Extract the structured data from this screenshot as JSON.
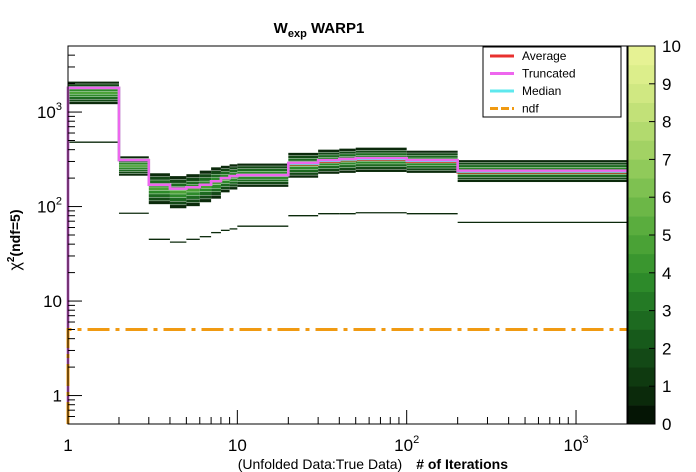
{
  "chart_data": {
    "type": "line",
    "title_main": "W",
    "title_sub": "exp",
    "title_rest": " WARP1",
    "xlabel_pre": "(Unfolded Data:True Data)",
    "xlabel_main": "# of Iterations",
    "ylabel_chi": "χ",
    "ylabel_sup": "2",
    "ylabel_rest": "(ndf=5)",
    "xscale": "log",
    "yscale": "log",
    "xlim": [
      1,
      2000
    ],
    "ylim": [
      0.5,
      5000
    ],
    "x_ticks": [
      {
        "value": 1,
        "label": "1",
        "sup": ""
      },
      {
        "value": 10,
        "label": "10",
        "sup": ""
      },
      {
        "value": 100,
        "label": "10",
        "sup": "2"
      },
      {
        "value": 1000,
        "label": "10",
        "sup": "3"
      }
    ],
    "y_ticks": [
      {
        "value": 1,
        "label": "1",
        "sup": ""
      },
      {
        "value": 10,
        "label": "10",
        "sup": ""
      },
      {
        "value": 100,
        "label": "10",
        "sup": "2"
      },
      {
        "value": 1000,
        "label": "10",
        "sup": "3"
      }
    ],
    "iterations": [
      1,
      2,
      3,
      4,
      5,
      6,
      7,
      8,
      9,
      10,
      20,
      30,
      40,
      50,
      100,
      200,
      2000
    ],
    "series": [
      {
        "name": "Average",
        "color": "#e8312f",
        "style": "solid",
        "values": [
          1800,
          310,
          170,
          155,
          160,
          170,
          185,
          200,
          210,
          215,
          280,
          300,
          310,
          315,
          300,
          230
        ]
      },
      {
        "name": "Truncated",
        "color": "#ee66ee",
        "style": "solid",
        "values": [
          1800,
          310,
          170,
          155,
          160,
          170,
          185,
          200,
          210,
          215,
          290,
          310,
          320,
          325,
          310,
          240
        ]
      },
      {
        "name": "Median",
        "color": "#5ee8ee",
        "style": "solid",
        "values": [
          1800,
          310,
          170,
          155,
          160,
          170,
          185,
          200,
          210,
          215,
          285,
          305,
          315,
          320,
          305,
          235
        ]
      },
      {
        "name": "ndf",
        "color": "#f09a12",
        "style": "dashdot",
        "values": [
          5,
          5,
          5,
          5,
          5,
          5,
          5,
          5,
          5,
          5,
          5,
          5,
          5,
          5,
          5,
          5
        ]
      }
    ],
    "band": {
      "lower": [
        1200,
        210,
        105,
        95,
        100,
        110,
        120,
        140,
        150,
        160,
        200,
        220,
        225,
        230,
        225,
        180
      ],
      "upper": [
        2100,
        340,
        225,
        210,
        220,
        240,
        260,
        270,
        280,
        285,
        370,
        400,
        410,
        420,
        390,
        310
      ]
    },
    "outliers": [
      {
        "x0": 1,
        "x1": 2,
        "y": 480
      },
      {
        "x0": 2,
        "x1": 3,
        "y": 85
      },
      {
        "x0": 3,
        "x1": 4,
        "y": 45
      },
      {
        "x0": 4,
        "x1": 5,
        "y": 42
      },
      {
        "x0": 5,
        "x1": 6,
        "y": 45
      },
      {
        "x0": 6,
        "x1": 7,
        "y": 48
      },
      {
        "x0": 7,
        "x1": 8,
        "y": 53
      },
      {
        "x0": 8,
        "x1": 9,
        "y": 56
      },
      {
        "x0": 9,
        "x1": 10,
        "y": 58
      },
      {
        "x0": 10,
        "x1": 20,
        "y": 62
      },
      {
        "x0": 20,
        "x1": 30,
        "y": 80
      },
      {
        "x0": 30,
        "x1": 40,
        "y": 84
      },
      {
        "x0": 40,
        "x1": 50,
        "y": 84
      },
      {
        "x0": 50,
        "x1": 100,
        "y": 86
      },
      {
        "x0": 100,
        "x1": 200,
        "y": 84
      },
      {
        "x0": 200,
        "x1": 2000,
        "y": 68
      }
    ],
    "colorbar": {
      "min": 0,
      "max": 10,
      "labels": [
        "0",
        "1",
        "2",
        "3",
        "4",
        "5",
        "6",
        "7",
        "8",
        "9",
        "10"
      ],
      "colors": [
        "#051505",
        "#0b2a0b",
        "#0f3a10",
        "#134916",
        "#175a1b",
        "#1d6a20",
        "#247a25",
        "#2d8a2a",
        "#3a962f",
        "#4aa236",
        "#5aad3e",
        "#6cb747",
        "#7ec151",
        "#90ca5a",
        "#a2d264",
        "#b2da6e",
        "#c2e178",
        "#d0e882",
        "#dcee8b",
        "#e6f294"
      ]
    },
    "legend": {
      "position": "top-right",
      "entries": [
        "Average",
        "Truncated",
        "Median",
        "ndf"
      ]
    }
  }
}
